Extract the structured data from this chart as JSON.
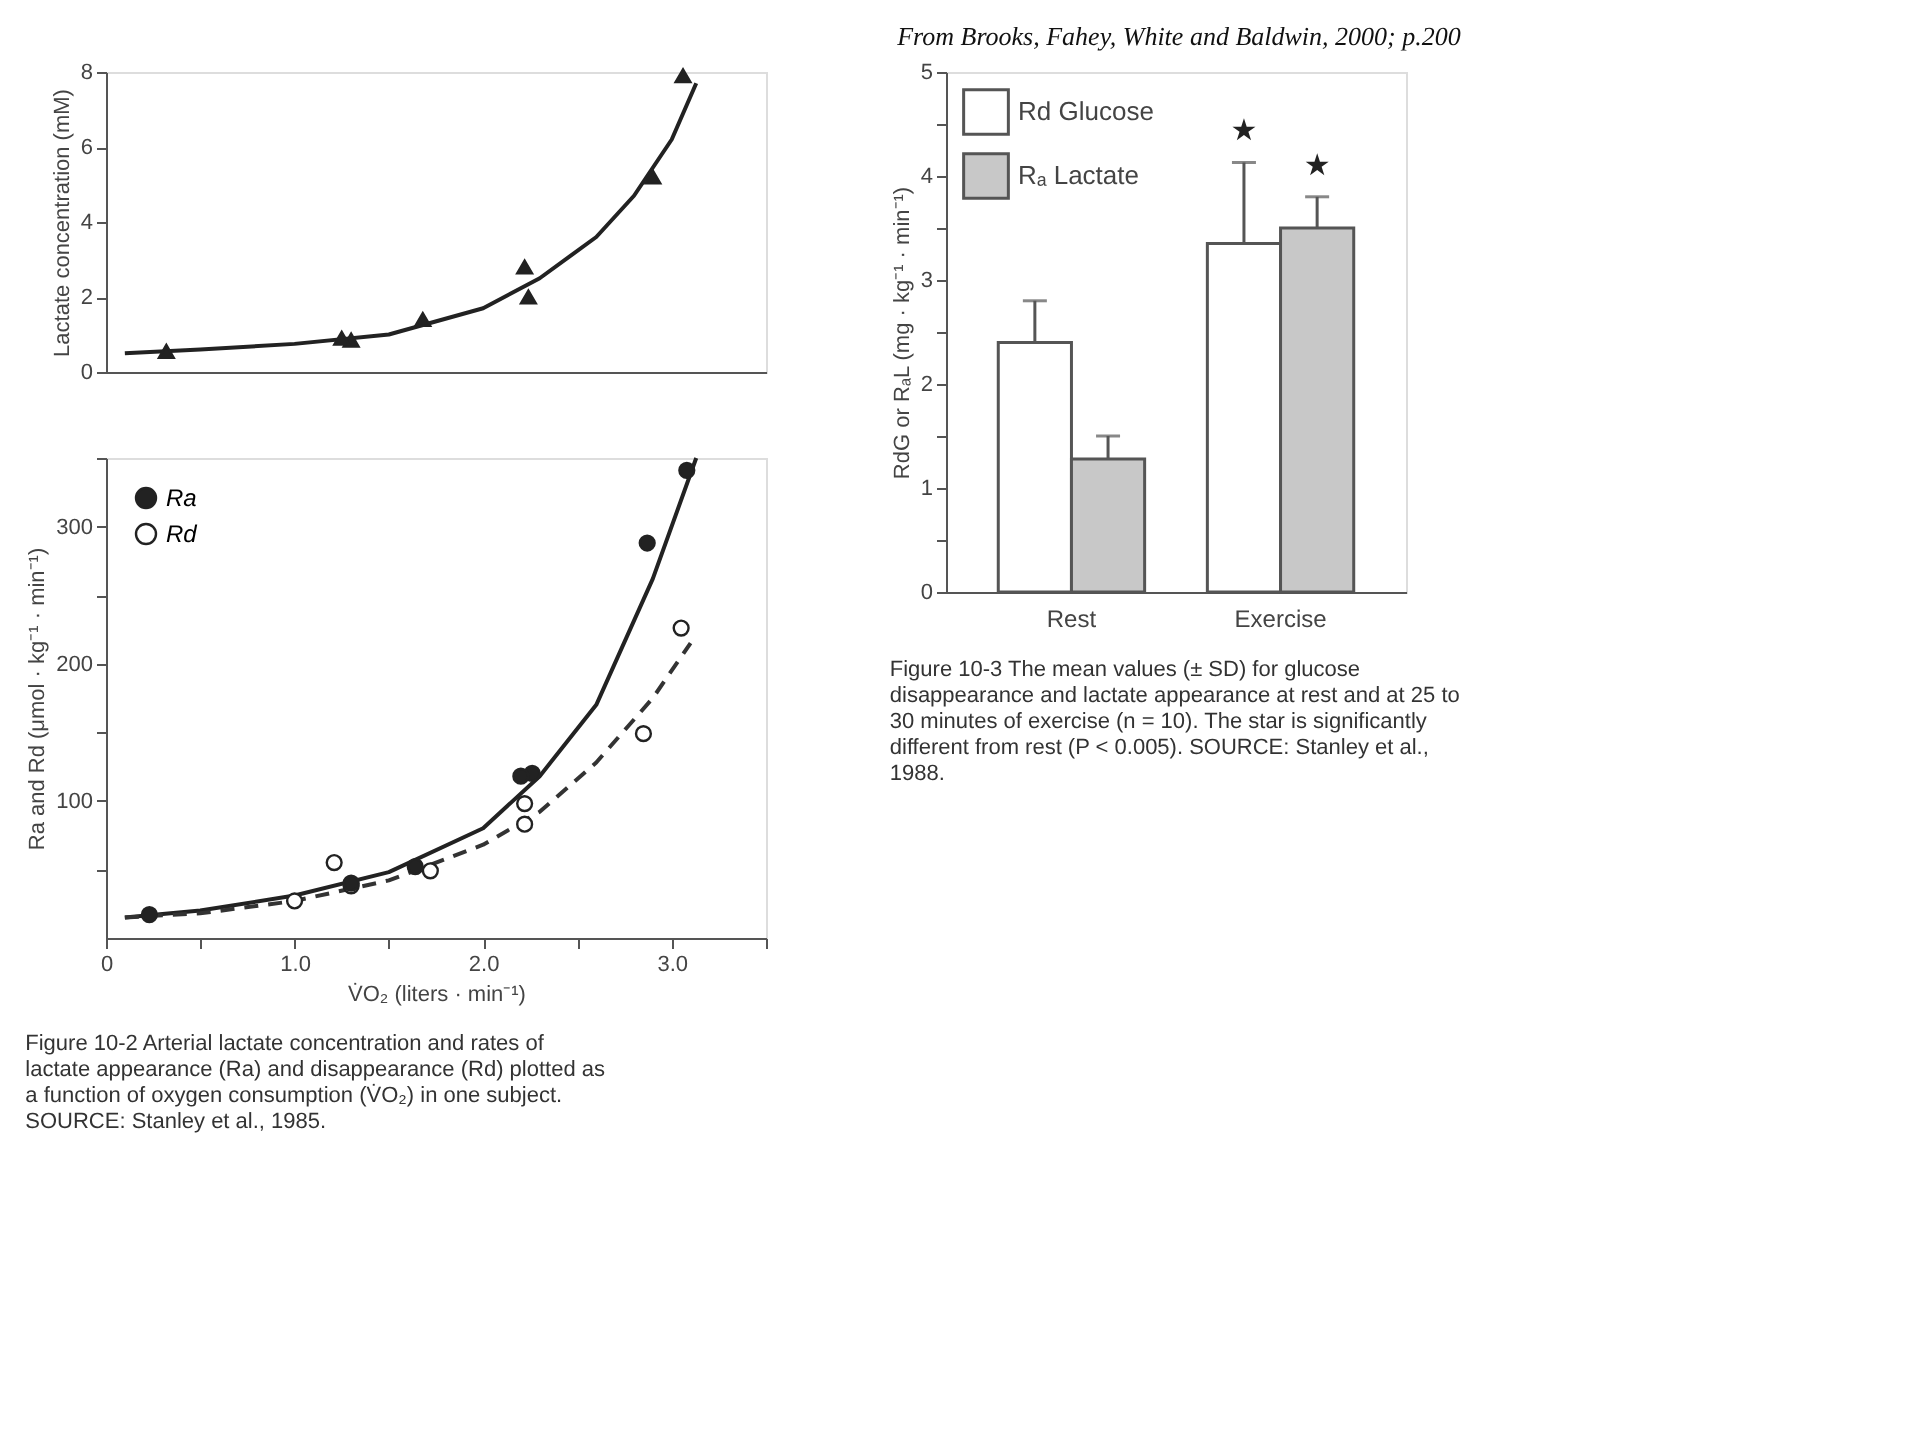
{
  "chart_data": [
    {
      "type": "scatter",
      "ylabel": "Lactate concentration (mM)",
      "xlim": [
        0,
        3.5
      ],
      "ylim": [
        0,
        8
      ],
      "yticks": [
        0,
        2,
        4,
        6,
        8
      ],
      "tick_labels": "y",
      "grid": false,
      "legend": false,
      "marker": "triangle",
      "annotations": [
        "From Brooks, Fahey, White and Baldwin, 2000; p.200"
      ],
      "series": [
        {
          "type": "line",
          "color": "#222222",
          "line_style": "solid",
          "marker": "none",
          "x": [
            0.1,
            0.5,
            1.0,
            1.5,
            2.0,
            2.3,
            2.6,
            2.8,
            3.0,
            3.13
          ],
          "values": [
            0.5,
            0.6,
            0.75,
            1.0,
            1.7,
            2.5,
            3.6,
            4.7,
            6.2,
            7.7
          ]
        },
        {
          "color": "#222222",
          "x": [
            0.32,
            1.25,
            1.3,
            1.68,
            2.22,
            2.24,
            2.9,
            3.06
          ],
          "values": [
            0.55,
            0.9,
            0.85,
            1.4,
            2.8,
            2.0,
            5.2,
            7.9
          ]
        }
      ]
    },
    {
      "type": "scatter",
      "xlabel": "V̇O₂ (liters · min⁻¹)",
      "ylabel": "Ra and Rd (μmol · kg⁻¹ · min⁻¹)",
      "xlim": [
        0,
        3.5
      ],
      "ylim": [
        0,
        350
      ],
      "xticks": [
        0,
        {
          "value": 0.5,
          "label": null
        },
        {
          "value": 1,
          "label": "1.0"
        },
        {
          "value": 1.5,
          "label": null
        },
        {
          "value": 2,
          "label": "2.0"
        },
        {
          "value": 2.5,
          "label": null
        },
        {
          "value": 3,
          "label": "3.0"
        },
        {
          "value": 3.5,
          "label": null
        }
      ],
      "yticks": [
        {
          "value": 50,
          "label": null
        },
        100,
        {
          "value": 150,
          "label": null
        },
        200,
        {
          "value": 250,
          "label": null
        },
        300,
        {
          "value": 350,
          "label": null
        }
      ],
      "grid": false,
      "legend": "top left",
      "marker": "circle",
      "annotations": [
        "Figure 10-2  Arterial lactate concentration and rates of lactate appearance (Ra) and disappearance (Rd) plotted as a function of oxygen consumption (V̇O₂) in one subject. SOURCE: Stanley et al., 1985."
      ],
      "series": [
        {
          "type": "line",
          "color": "#222222",
          "line_style": "solid",
          "marker": "none",
          "x": [
            0.1,
            0.5,
            1.0,
            1.5,
            2.0,
            2.3,
            2.6,
            2.9,
            3.13
          ],
          "values": [
            15,
            20,
            31,
            48,
            80,
            118,
            170,
            262,
            350
          ]
        },
        {
          "type": "line",
          "color": "#333333",
          "line_style": "dashed",
          "marker": "none",
          "x": [
            0.1,
            0.5,
            1.0,
            1.5,
            2.0,
            2.3,
            2.6,
            2.9,
            3.1
          ],
          "values": [
            15,
            18,
            27,
            42,
            68,
            92,
            128,
            175,
            215
          ]
        },
        {
          "name": "Ra",
          "color": "#222222",
          "x": [
            0.23,
            1.3,
            1.64,
            2.2,
            2.26,
            2.87,
            3.08
          ],
          "values": [
            17,
            40,
            52,
            118,
            120,
            288,
            341
          ]
        },
        {
          "name": "Rd",
          "color": "#ffffff",
          "x": [
            1.0,
            1.21,
            1.3,
            1.72,
            2.22,
            2.22,
            2.85,
            3.05
          ],
          "values": [
            27,
            55,
            38,
            49,
            98,
            83,
            149,
            226
          ]
        }
      ]
    },
    {
      "type": "bar",
      "categories": [
        "Rest",
        "Exercise"
      ],
      "ylabel": "RdG or RₐL (mg · kg⁻¹ · min⁻¹)",
      "ylim": [
        0,
        5
      ],
      "yticks": [
        0,
        {
          "value": 0.5,
          "label": null
        },
        1,
        {
          "value": 1.5,
          "label": null
        },
        2,
        {
          "value": 2.5,
          "label": null
        },
        3,
        {
          "value": 3.5,
          "label": null
        },
        4,
        {
          "value": 4.5,
          "label": null
        },
        5
      ],
      "grid": false,
      "legend": "top left",
      "annotations": [
        "★",
        "★",
        "Figure 10-3  The mean values (± SD) for glucose disappearance and lactate appearance at rest and at 25 to 30 minutes of exercise (n = 10). The star is significantly different from rest (P < 0.005). SOURCE: Stanley et al., 1988."
      ],
      "series": [
        {
          "name": "Rd Glucose",
          "color": "#ffffff",
          "values": [
            2.4,
            3.35
          ],
          "errors": [
            0.4,
            0.78
          ]
        },
        {
          "name": "Rₐ Lactate",
          "color": "#c8c8c8",
          "values": [
            1.28,
            3.5
          ],
          "errors": [
            0.22,
            0.3
          ]
        }
      ]
    }
  ]
}
